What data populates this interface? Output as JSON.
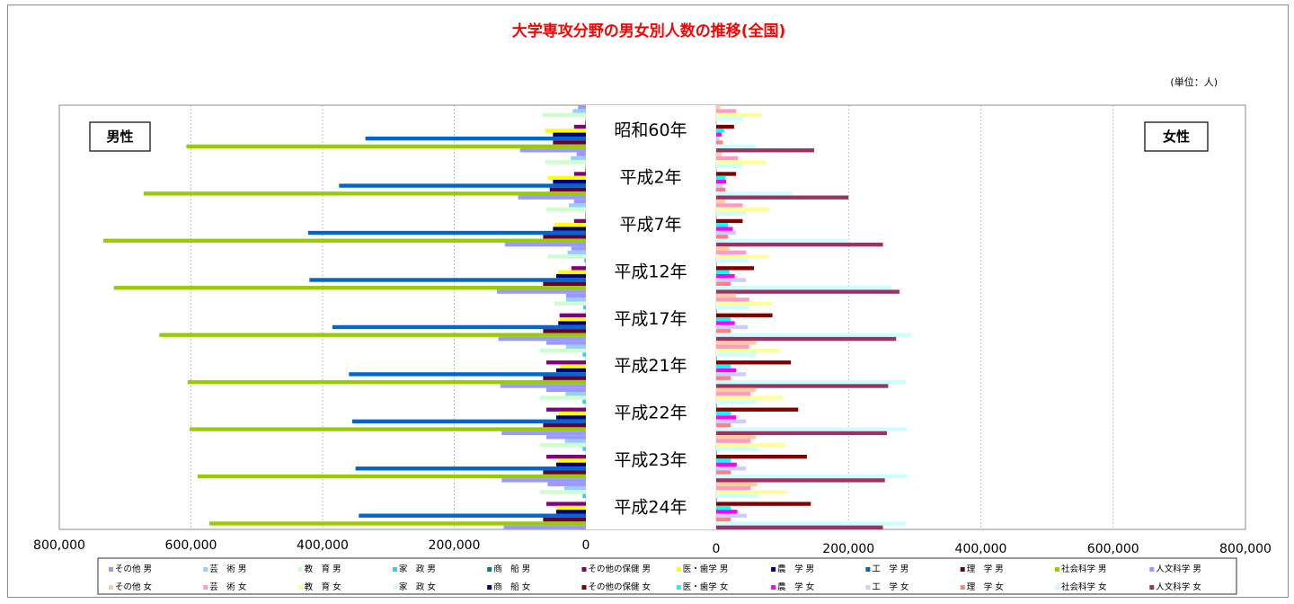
{
  "chart_data": {
    "type": "bar",
    "orientation": "horizontal-butterfly",
    "title": "大学専攻分野の男女別人数の推移(全国)",
    "unit_label": "(単位：人)",
    "left_label": "男性",
    "right_label": "女性",
    "left_ticks": [
      "800,000",
      "600,000",
      "400,000",
      "200,000",
      "0"
    ],
    "right_ticks": [
      "0",
      "200,000",
      "400,000",
      "600,000",
      "800,000"
    ],
    "xlim": [
      0,
      800000
    ],
    "categories": [
      "昭和60年",
      "平成2年",
      "平成7年",
      "平成12年",
      "平成17年",
      "平成21年",
      "平成22年",
      "平成23年",
      "平成24年"
    ],
    "fields": [
      "その他",
      "芸　術",
      "教　育",
      "家　政",
      "商　船",
      "その他の保健",
      "医・歯学",
      "農　学",
      "工　学",
      "理　学",
      "社会科学",
      "人文科学"
    ],
    "male_series": [
      {
        "name": "その他 男",
        "color": "#9999ff",
        "values": [
          12000,
          14000,
          18000,
          22000,
          30000,
          60000,
          60000,
          60000,
          58000
        ]
      },
      {
        "name": "芸　術 男",
        "color": "#99ccff",
        "values": [
          20000,
          23000,
          26000,
          28000,
          30000,
          30000,
          31000,
          32000,
          33000
        ]
      },
      {
        "name": "教　育 男",
        "color": "#ccffcc",
        "values": [
          66000,
          62000,
          60000,
          58000,
          48000,
          70000,
          70000,
          70000,
          70000
        ]
      },
      {
        "name": "家　政 男",
        "color": "#33ccff",
        "values": [
          600,
          800,
          1200,
          2500,
          4000,
          5000,
          5000,
          5000,
          5000
        ]
      },
      {
        "name": "商　船 男",
        "color": "#008080",
        "values": [
          1200,
          900,
          700,
          400,
          300,
          300,
          300,
          300,
          300
        ]
      },
      {
        "name": "その他の保健 男",
        "color": "#800080",
        "values": [
          18000,
          18000,
          18000,
          22000,
          40000,
          60000,
          60000,
          60000,
          60000
        ]
      },
      {
        "name": "医・歯学 男",
        "color": "#ffff00",
        "values": [
          62000,
          58000,
          48000,
          42000,
          40000,
          40000,
          42000,
          42000,
          44000
        ]
      },
      {
        "name": "農　学 男",
        "color": "#000080",
        "values": [
          50000,
          50000,
          50000,
          45000,
          42000,
          45000,
          45000,
          45000,
          45000
        ]
      },
      {
        "name": "工　学 男",
        "color": "#0066cc",
        "values": [
          335000,
          375000,
          422000,
          420000,
          385000,
          360000,
          355000,
          350000,
          345000
        ]
      },
      {
        "name": "理　学 男",
        "color": "#660033",
        "values": [
          50000,
          55000,
          65000,
          65000,
          65000,
          65000,
          65000,
          65000,
          65000
        ]
      },
      {
        "name": "社会科学 男",
        "color": "#99cc00",
        "values": [
          607000,
          672000,
          733000,
          717000,
          648000,
          605000,
          602000,
          590000,
          572000
        ]
      },
      {
        "name": "人文科学 男",
        "color": "#9999ff",
        "values": [
          100000,
          103000,
          123000,
          135000,
          133000,
          130000,
          128000,
          128000,
          125000
        ]
      }
    ],
    "female_series": [
      {
        "name": "その他 女",
        "color": "#ffcc99",
        "values": [
          6000,
          8000,
          14000,
          20000,
          30000,
          60000,
          60000,
          60000,
          62000
        ]
      },
      {
        "name": "芸　術 女",
        "color": "#ff99cc",
        "values": [
          30000,
          33000,
          40000,
          45000,
          50000,
          50000,
          52000,
          52000,
          52000
        ]
      },
      {
        "name": "教　育 女",
        "color": "#ffff99",
        "values": [
          70000,
          75000,
          80000,
          80000,
          85000,
          95000,
          100000,
          105000,
          107000
        ]
      },
      {
        "name": "家　政 女",
        "color": "#ccffff",
        "values": [
          40000,
          40000,
          45000,
          48000,
          50000,
          60000,
          62000,
          62000,
          63000
        ]
      },
      {
        "name": "商　船 女",
        "color": "#000080",
        "values": [
          100,
          150,
          200,
          300,
          400,
          500,
          500,
          500,
          500
        ]
      },
      {
        "name": "その他の保健 女",
        "color": "#800000",
        "values": [
          27000,
          30000,
          40000,
          57000,
          85000,
          113000,
          124000,
          137000,
          143000
        ]
      },
      {
        "name": "医・歯学 女",
        "color": "#00ffff",
        "values": [
          12000,
          14000,
          18000,
          20000,
          22000,
          22000,
          22000,
          22000,
          22000
        ]
      },
      {
        "name": "農　学 女",
        "color": "#ff00ff",
        "values": [
          8000,
          15000,
          25000,
          28000,
          28000,
          30000,
          30000,
          31000,
          32000
        ]
      },
      {
        "name": "工　学 女",
        "color": "#ccccff",
        "values": [
          5000,
          10000,
          30000,
          45000,
          48000,
          45000,
          45000,
          45000,
          46000
        ]
      },
      {
        "name": "理　学 女",
        "color": "#ff8080",
        "values": [
          10000,
          14000,
          18000,
          22000,
          22000,
          22000,
          22000,
          22000,
          22000
        ]
      },
      {
        "name": "社会科学 女",
        "color": "#ccffff",
        "values": [
          60000,
          115000,
          200000,
          265000,
          295000,
          287000,
          288000,
          288000,
          287000
        ]
      },
      {
        "name": "人文科学 女",
        "color": "#993366",
        "values": [
          148000,
          200000,
          252000,
          277000,
          272000,
          260000,
          258000,
          255000,
          252000
        ]
      }
    ],
    "legend_placement": "bottom",
    "grid": true
  }
}
